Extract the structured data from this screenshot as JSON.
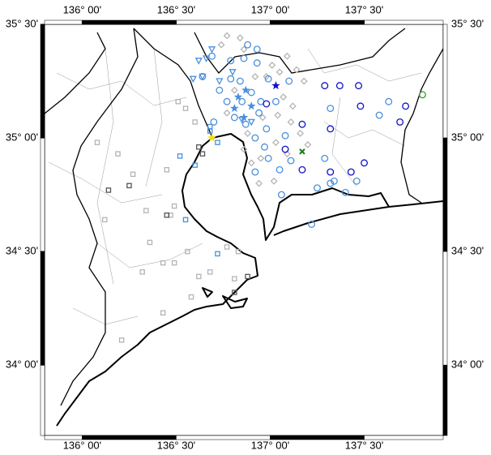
{
  "map": {
    "lonlim": [
      135.8,
      137.92
    ],
    "latlim": [
      33.69,
      35.5
    ],
    "lon_ticks": [
      {
        "value": 136,
        "label": "136° 00'"
      },
      {
        "value": 136.5,
        "label": "136° 30'"
      },
      {
        "value": 137,
        "label": "137° 00'"
      },
      {
        "value": 137.5,
        "label": "137° 30'"
      }
    ],
    "lat_ticks": [
      {
        "value": 35.5,
        "label": "35° 30'"
      },
      {
        "value": 35,
        "label": "35° 00'"
      },
      {
        "value": 34.5,
        "label": "34° 30'"
      },
      {
        "value": 34,
        "label": "34° 00'"
      }
    ],
    "layers": [
      {
        "symbol": "square",
        "color": "#b4b4b4",
        "points": [
          [
            136.08,
            34.98
          ],
          [
            136.19,
            34.93
          ],
          [
            136.27,
            34.84
          ],
          [
            136.45,
            34.86
          ],
          [
            136.34,
            34.68
          ],
          [
            136.12,
            34.64
          ],
          [
            136.47,
            34.66
          ],
          [
            136.56,
            34.5
          ],
          [
            136.43,
            34.45
          ],
          [
            136.49,
            34.45
          ],
          [
            136.68,
            34.41
          ],
          [
            136.77,
            34.52
          ],
          [
            136.81,
            34.38
          ],
          [
            136.58,
            34.3
          ],
          [
            136.43,
            34.23
          ],
          [
            136.21,
            34.11
          ],
          [
            136.36,
            34.54
          ],
          [
            136.62,
            34.39
          ],
          [
            136.51,
            35.16
          ],
          [
            136.55,
            35.13
          ],
          [
            136.6,
            35.07
          ],
          [
            136.49,
            34.7
          ],
          [
            136.83,
            34.5
          ],
          [
            136.32,
            34.41
          ]
        ]
      },
      {
        "symbol": "square",
        "color": "#555555",
        "points": [
          [
            136.14,
            34.77
          ],
          [
            136.62,
            34.96
          ],
          [
            136.64,
            34.93
          ],
          [
            136.45,
            34.66
          ],
          [
            136.88,
            34.39
          ],
          [
            136.81,
            34.32
          ],
          [
            136.25,
            34.79
          ]
        ]
      },
      {
        "symbol": "diamond",
        "color": "#b4b4b4",
        "points": [
          [
            137.09,
            35.36
          ],
          [
            137.14,
            35.3
          ],
          [
            137.18,
            35.25
          ],
          [
            137.07,
            35.18
          ],
          [
            137.12,
            35.14
          ],
          [
            137.04,
            35.1
          ],
          [
            137.16,
            35.02
          ],
          [
            137.2,
            34.97
          ],
          [
            137.09,
            34.93
          ],
          [
            137.03,
            34.98
          ],
          [
            136.95,
            34.91
          ],
          [
            136.86,
            34.95
          ],
          [
            136.9,
            34.89
          ],
          [
            136.94,
            34.8
          ],
          [
            137.02,
            34.81
          ],
          [
            136.98,
            35.27
          ],
          [
            137.05,
            35.29
          ],
          [
            136.92,
            35.27
          ],
          [
            136.81,
            35.21
          ],
          [
            136.77,
            35.11
          ],
          [
            136.88,
            35.02
          ],
          [
            137.11,
            35.07
          ],
          [
            136.96,
            35.09
          ],
          [
            137.01,
            35.32
          ],
          [
            136.86,
            35.39
          ],
          [
            136.74,
            35.41
          ],
          [
            136.77,
            35.45
          ],
          [
            136.84,
            35.44
          ]
        ]
      },
      {
        "symbol": "circle",
        "color": "#4a8fdb",
        "points": [
          [
            137.32,
            35.13
          ],
          [
            137.58,
            35.1
          ],
          [
            137.63,
            35.16
          ],
          [
            137.29,
            34.91
          ],
          [
            137.34,
            34.81
          ],
          [
            137.4,
            34.76
          ],
          [
            137.46,
            34.81
          ],
          [
            137.22,
            34.62
          ],
          [
            137.11,
            34.9
          ],
          [
            137.05,
            34.86
          ],
          [
            136.99,
            34.91
          ],
          [
            136.92,
            34.85
          ],
          [
            137.06,
            34.75
          ],
          [
            137.25,
            34.78
          ],
          [
            137.32,
            34.8
          ],
          [
            137.08,
            35.01
          ],
          [
            137.1,
            35.25
          ],
          [
            136.99,
            35.26
          ],
          [
            136.93,
            35.33
          ],
          [
            136.86,
            35.35
          ],
          [
            136.79,
            35.34
          ],
          [
            136.79,
            35.26
          ],
          [
            136.84,
            35.25
          ],
          [
            136.9,
            35.2
          ],
          [
            136.95,
            35.16
          ],
          [
            136.87,
            35.06
          ],
          [
            136.81,
            35.09
          ],
          [
            136.77,
            35.16
          ],
          [
            136.73,
            35.21
          ],
          [
            137.03,
            35.16
          ],
          [
            136.98,
            35.04
          ],
          [
            136.92,
            35
          ],
          [
            136.97,
            34.96
          ],
          [
            136.93,
            35.39
          ],
          [
            136.88,
            35.41
          ],
          [
            136.69,
            35.36
          ],
          [
            136.64,
            35.27
          ],
          [
            136.85,
            35.16
          ],
          [
            136.94,
            35.11
          ],
          [
            136.7,
            35.07
          ]
        ]
      },
      {
        "symbol": "circle",
        "color": "#1010c8",
        "points": [
          [
            137.29,
            35.23
          ],
          [
            137.37,
            35.23
          ],
          [
            137.47,
            35.23
          ],
          [
            137.48,
            35.14
          ],
          [
            137.17,
            35.06
          ],
          [
            137.32,
            35.04
          ],
          [
            137.5,
            34.89
          ],
          [
            137.43,
            34.85
          ],
          [
            137.32,
            34.85
          ],
          [
            137.17,
            34.86
          ],
          [
            137.08,
            34.95
          ],
          [
            137.72,
            35.14
          ],
          [
            137.69,
            35.07
          ],
          [
            136.98,
            35.15
          ]
        ]
      },
      {
        "symbol": "triangle",
        "color": "#4a8fdb",
        "points": [
          [
            136.62,
            35.34
          ],
          [
            136.66,
            35.35
          ],
          [
            136.69,
            35.39
          ],
          [
            136.64,
            35.27
          ],
          [
            136.59,
            35.26
          ],
          [
            136.73,
            35.25
          ],
          [
            136.8,
            35.29
          ],
          [
            136.85,
            35.08
          ],
          [
            136.9,
            35.07
          ]
        ]
      },
      {
        "symbol": "square",
        "color": "#4a8fdb",
        "points": [
          [
            136.68,
            35.03
          ],
          [
            136.72,
            34.98
          ],
          [
            136.6,
            34.88
          ],
          [
            136.55,
            34.64
          ],
          [
            136.52,
            34.92
          ],
          [
            136.72,
            34.49
          ],
          [
            136.68,
            35.05
          ]
        ]
      },
      {
        "symbol": "star",
        "color": "#4a8fdb",
        "points": [
          [
            136.83,
            35.18
          ],
          [
            136.87,
            35.21
          ],
          [
            136.81,
            35.13
          ],
          [
            136.9,
            35.14
          ],
          [
            136.86,
            35.09
          ]
        ]
      },
      {
        "symbol": "star",
        "color": "#1010c8",
        "points": [
          [
            137.03,
            35.23
          ]
        ]
      },
      {
        "symbol": "star",
        "color": "#f0e000",
        "points": [
          [
            136.69,
            35.0
          ]
        ]
      },
      {
        "symbol": "x",
        "color": "#1a7a1a",
        "points": [
          [
            137.17,
            34.94
          ]
        ]
      },
      {
        "symbol": "circle",
        "color": "#2aa02a",
        "points": [
          [
            137.81,
            35.19
          ]
        ]
      }
    ]
  }
}
